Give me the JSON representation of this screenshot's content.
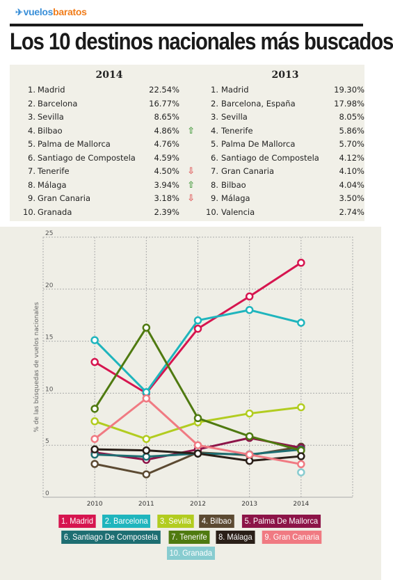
{
  "brand": {
    "logo_part1": "vuelos",
    "logo_part2": "baratos"
  },
  "title": "Los 10 destinos nacionales más buscados",
  "rankings": {
    "y2014": {
      "year": "2014",
      "rows": [
        {
          "pos": "1.",
          "name": "Madrid",
          "pct": "22.54%",
          "trend": ""
        },
        {
          "pos": "2.",
          "name": "Barcelona",
          "pct": "16.77%",
          "trend": ""
        },
        {
          "pos": "3.",
          "name": "Sevilla",
          "pct": "8.65%",
          "trend": ""
        },
        {
          "pos": "4.",
          "name": "Bilbao",
          "pct": "4.86%",
          "trend": "up"
        },
        {
          "pos": "5.",
          "name": "Palma de Mallorca",
          "pct": "4.76%",
          "trend": ""
        },
        {
          "pos": "6.",
          "name": "Santiago de Compostela",
          "pct": "4.59%",
          "trend": ""
        },
        {
          "pos": "7.",
          "name": "Tenerife",
          "pct": "4.50%",
          "trend": "down"
        },
        {
          "pos": "8.",
          "name": "Málaga",
          "pct": "3.94%",
          "trend": "up"
        },
        {
          "pos": "9.",
          "name": "Gran Canaria",
          "pct": "3.18%",
          "trend": "down"
        },
        {
          "pos": "10.",
          "name": "Granada",
          "pct": "2.39%",
          "trend": ""
        }
      ]
    },
    "y2013": {
      "year": "2013",
      "rows": [
        {
          "pos": "1.",
          "name": "Madrid",
          "pct": "19.30%"
        },
        {
          "pos": "2.",
          "name": "Barcelona, España",
          "pct": "17.98%"
        },
        {
          "pos": "3.",
          "name": "Sevilla",
          "pct": "8.05%"
        },
        {
          "pos": "4.",
          "name": "Tenerife",
          "pct": "5.86%"
        },
        {
          "pos": "5.",
          "name": "Palma De Mallorca",
          "pct": "5.70%"
        },
        {
          "pos": "6.",
          "name": "Santiago de Compostela",
          "pct": "4.12%"
        },
        {
          "pos": "7.",
          "name": "Gran Canaria",
          "pct": "4.10%"
        },
        {
          "pos": "8.",
          "name": "Bilbao",
          "pct": "4.04%"
        },
        {
          "pos": "9.",
          "name": "Málaga",
          "pct": "3.50%"
        },
        {
          "pos": "10.",
          "name": "Valencia",
          "pct": "2.74%"
        }
      ]
    }
  },
  "chart_data": {
    "type": "line",
    "x": [
      2010,
      2011,
      2012,
      2013,
      2014
    ],
    "ylabel": "% de las búsquedas de vuelos nacionales",
    "ylim": [
      0,
      25
    ],
    "yticks": [
      0,
      5,
      10,
      15,
      20,
      25
    ],
    "grid": true,
    "legend_position": "bottom",
    "series": [
      {
        "name": "1. Madrid",
        "color": "#d6154f",
        "values": [
          13.0,
          10.0,
          16.2,
          19.3,
          22.54
        ]
      },
      {
        "name": "2. Barcelona",
        "color": "#1fb5bd",
        "values": [
          15.1,
          10.1,
          17.0,
          18.0,
          16.77
        ]
      },
      {
        "name": "3. Sevilla",
        "color": "#b2cc20",
        "values": [
          7.3,
          5.6,
          7.2,
          8.05,
          8.65
        ]
      },
      {
        "name": "4. Bilbao",
        "color": "#5c4a32",
        "values": [
          3.2,
          2.2,
          4.3,
          4.04,
          4.86
        ]
      },
      {
        "name": "5. Palma De Mallorca",
        "color": "#8c1448",
        "values": [
          4.3,
          3.6,
          4.6,
          5.7,
          4.76
        ]
      },
      {
        "name": "6. Santiago De Compostela",
        "color": "#1e6e72",
        "values": [
          4.1,
          3.9,
          4.2,
          4.12,
          4.59
        ]
      },
      {
        "name": "7. Tenerife",
        "color": "#4f7a10",
        "values": [
          8.5,
          16.3,
          7.6,
          5.86,
          4.5
        ]
      },
      {
        "name": "8. Málaga",
        "color": "#2a1f18",
        "values": [
          4.6,
          4.5,
          4.2,
          3.5,
          3.94
        ]
      },
      {
        "name": "9. Gran Canaria",
        "color": "#f07a82",
        "values": [
          5.6,
          9.5,
          5.0,
          4.1,
          3.18
        ]
      },
      {
        "name": "10. Granada",
        "color": "#88ccd0",
        "values": [
          null,
          null,
          null,
          null,
          2.39
        ]
      }
    ]
  },
  "legend_rows": [
    [
      0,
      1,
      2,
      3,
      4
    ],
    [
      5,
      6,
      7,
      8
    ],
    [
      9
    ]
  ]
}
